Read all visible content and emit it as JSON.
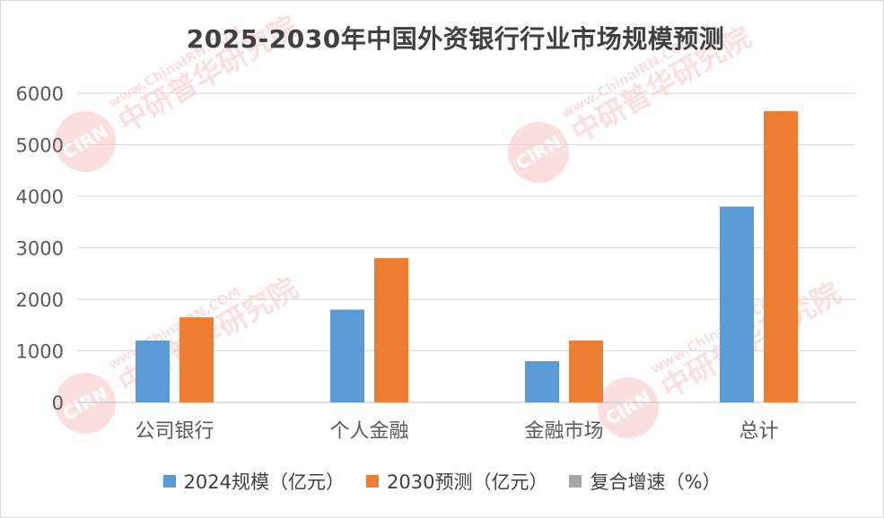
{
  "chart_data": {
    "type": "bar",
    "title": "2025-2030年中国外资银行行业市场规模预测",
    "categories": [
      "公司银行",
      "个人金融",
      "金融市场",
      "总计"
    ],
    "series": [
      {
        "name": "2024规模（亿元）",
        "values": [
          1200,
          1800,
          800,
          3800
        ],
        "color": "#5b9bd5"
      },
      {
        "name": "2030预测（亿元）",
        "values": [
          1650,
          2800,
          1200,
          5650
        ],
        "color": "#ed7d31"
      },
      {
        "name": "复合增速（%）",
        "values": [
          null,
          null,
          null,
          null
        ],
        "color": "#a5a5a5"
      }
    ],
    "ylim": [
      0,
      6000
    ],
    "yticks": [
      0,
      1000,
      2000,
      3000,
      4000,
      5000,
      6000
    ],
    "grid": true,
    "legend_position": "bottom"
  },
  "watermark": {
    "logo_text": "CIRN",
    "url_text": "www.ChinaIRN.COM",
    "org_text": "中研普华研究院",
    "color": "#e8423c"
  }
}
